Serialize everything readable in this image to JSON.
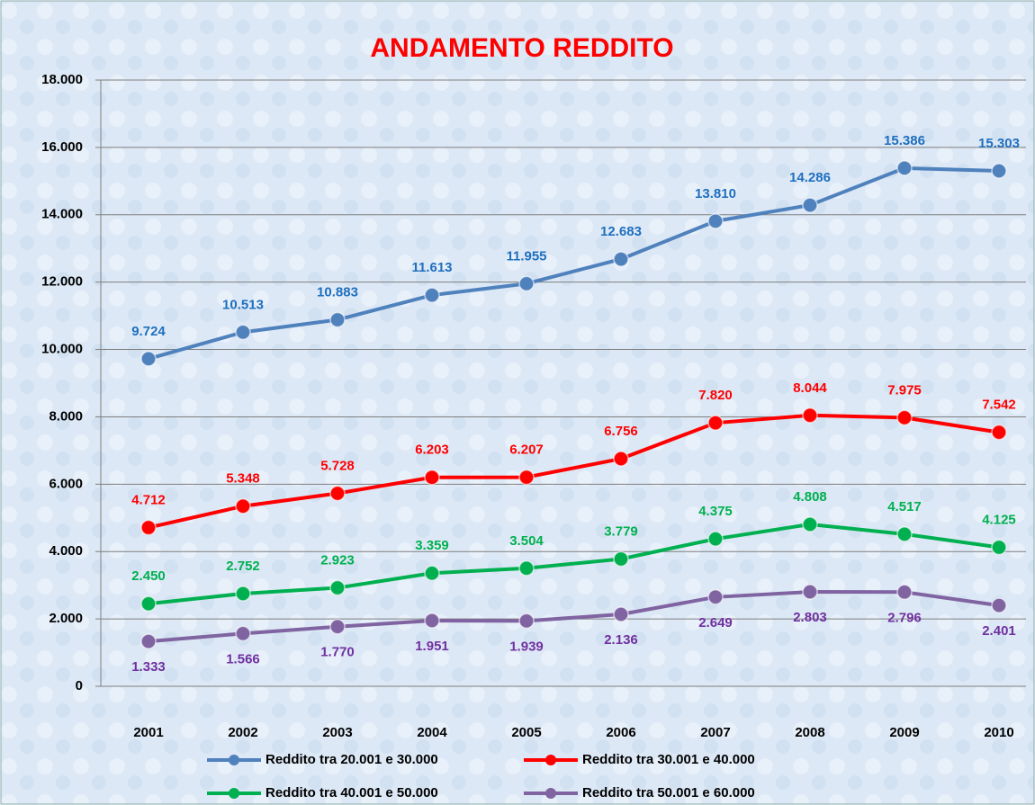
{
  "chart_data": {
    "type": "line",
    "title": "ANDAMENTO REDDITO",
    "categories": [
      "2001",
      "2002",
      "2003",
      "2004",
      "2005",
      "2006",
      "2007",
      "2008",
      "2009",
      "2010"
    ],
    "ylim": [
      0,
      18000
    ],
    "yticks": [
      {
        "value": 0,
        "label": "0"
      },
      {
        "value": 2000,
        "label": "2.000"
      },
      {
        "value": 4000,
        "label": "4.000"
      },
      {
        "value": 6000,
        "label": "6.000"
      },
      {
        "value": 8000,
        "label": "8.000"
      },
      {
        "value": 10000,
        "label": "10.000"
      },
      {
        "value": 12000,
        "label": "12.000"
      },
      {
        "value": 14000,
        "label": "14.000"
      },
      {
        "value": 16000,
        "label": "16.000"
      },
      {
        "value": 18000,
        "label": "18.000"
      }
    ],
    "grid": true,
    "legend": "bottom",
    "series": [
      {
        "name": "Reddito tra 20.001 e 30.000",
        "color": "#4f81bd",
        "label_color": "#1f6fbf",
        "values": [
          9724,
          10513,
          10883,
          11613,
          11955,
          12683,
          13810,
          14286,
          15386,
          15303
        ],
        "value_labels": [
          "9.724",
          "10.513",
          "10.883",
          "11.613",
          "11.955",
          "12.683",
          "13.810",
          "14.286",
          "15.386",
          "15.303"
        ]
      },
      {
        "name": "Reddito tra 30.001 e 40.000",
        "color": "#ff0000",
        "label_color": "#ff0000",
        "values": [
          4712,
          5348,
          5728,
          6203,
          6207,
          6756,
          7820,
          8044,
          7975,
          7542
        ],
        "value_labels": [
          "4.712",
          "5.348",
          "5.728",
          "6.203",
          "6.207",
          "6.756",
          "7.820",
          "8.044",
          "7.975",
          "7.542"
        ]
      },
      {
        "name": "Reddito tra 40.001 e 50.000",
        "color": "#00b050",
        "label_color": "#00b050",
        "values": [
          2450,
          2752,
          2923,
          3359,
          3504,
          3779,
          4375,
          4808,
          4517,
          4125
        ],
        "value_labels": [
          "2.450",
          "2.752",
          "2.923",
          "3.359",
          "3.504",
          "3.779",
          "4.375",
          "4.808",
          "4.517",
          "4.125"
        ]
      },
      {
        "name": "Reddito tra 50.001 e 60.000",
        "color": "#8064a2",
        "label_color": "#7030a0",
        "values": [
          1333,
          1566,
          1770,
          1951,
          1939,
          2136,
          2649,
          2803,
          2796,
          2401
        ],
        "value_labels": [
          "1.333",
          "1.566",
          "1.770",
          "1.951",
          "1.939",
          "2.136",
          "2.649",
          "2.803",
          "2.796",
          "2.401"
        ]
      }
    ]
  }
}
